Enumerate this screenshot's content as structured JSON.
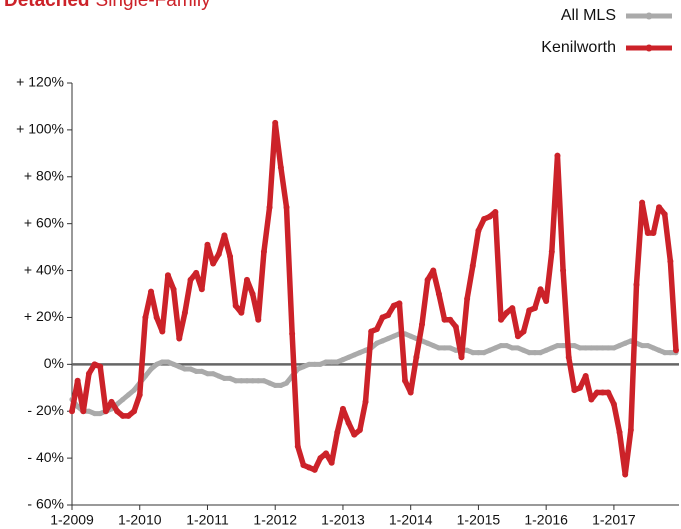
{
  "chart_data": {
    "type": "line",
    "title": "Detached",
    "subtitle": "Single-Family",
    "categories": [
      "1-2009",
      null,
      null,
      null,
      null,
      null,
      null,
      null,
      null,
      null,
      null,
      null,
      "1-2010",
      null,
      null,
      null,
      null,
      null,
      null,
      null,
      null,
      null,
      null,
      null,
      "1-2011",
      null,
      null,
      null,
      null,
      null,
      null,
      null,
      null,
      null,
      null,
      null,
      "1-2012",
      null,
      null,
      null,
      null,
      null,
      null,
      null,
      null,
      null,
      null,
      null,
      "1-2013",
      null,
      null,
      null,
      null,
      null,
      null,
      null,
      null,
      null,
      null,
      null,
      "1-2014",
      null,
      null,
      null,
      null,
      null,
      null,
      null,
      null,
      null,
      null,
      null,
      "1-2015",
      null,
      null,
      null,
      null,
      null,
      null,
      null,
      null,
      null,
      null,
      null,
      "1-2016",
      null,
      null,
      null,
      null,
      null,
      null,
      null,
      null,
      null,
      null,
      null,
      "1-2017",
      null,
      null,
      null,
      null,
      null,
      null,
      null,
      null,
      null,
      null,
      null
    ],
    "series": [
      {
        "name": "All MLS",
        "color": "#aaaaaa",
        "values": [
          -15,
          -18,
          -20,
          -20,
          -21,
          -21,
          -20,
          -19,
          -17,
          -15,
          -13,
          -11,
          -8,
          -5,
          -2,
          0,
          1,
          1,
          0,
          -1,
          -2,
          -2,
          -3,
          -3,
          -4,
          -4,
          -5,
          -6,
          -6,
          -7,
          -7,
          -7,
          -7,
          -7,
          -7,
          -8,
          -9,
          -9,
          -8,
          -5,
          -2,
          -1,
          0,
          0,
          0,
          1,
          1,
          1,
          2,
          3,
          4,
          5,
          6,
          7,
          9,
          10,
          11,
          12,
          13,
          13,
          12,
          11,
          10,
          9,
          8,
          7,
          7,
          7,
          6,
          6,
          6,
          5,
          5,
          5,
          6,
          7,
          8,
          8,
          7,
          7,
          6,
          5,
          5,
          5,
          6,
          7,
          8,
          8,
          8,
          8,
          7,
          7,
          7,
          7,
          7,
          7,
          7,
          8,
          9,
          10,
          9,
          8,
          8,
          7,
          6,
          5,
          5,
          5
        ]
      },
      {
        "name": "Kenilworth",
        "color": "#cc2229",
        "values": [
          -20,
          -7,
          -20,
          -4,
          0,
          -1,
          -20,
          -16,
          -20,
          -22,
          -22,
          -20,
          -13,
          20,
          31,
          20,
          14,
          38,
          32,
          11,
          22,
          36,
          39,
          32,
          51,
          43,
          47,
          55,
          46,
          25,
          22,
          36,
          30,
          19,
          48,
          67,
          103,
          84,
          67,
          13,
          -35,
          -43,
          -44,
          -45,
          -40,
          -38,
          -42,
          -29,
          -19,
          -25,
          -30,
          -28,
          -16,
          14,
          15,
          20,
          21,
          25,
          26,
          -7,
          -12,
          3,
          17,
          36,
          40,
          30,
          19,
          19,
          16,
          3,
          28,
          42,
          57,
          62,
          63,
          65,
          19,
          22,
          24,
          12,
          14,
          23,
          24,
          32,
          27,
          48,
          89,
          40,
          3,
          -11,
          -10,
          -5,
          -15,
          -12,
          -12,
          -12,
          -17,
          -29,
          -47,
          -28,
          34,
          69,
          56,
          56,
          67,
          64,
          44,
          6
        ]
      }
    ],
    "ylim": [
      -60,
      120
    ],
    "yticks": [
      {
        "value": -60,
        "label": "- 60%"
      },
      {
        "value": -40,
        "label": "- 40%"
      },
      {
        "value": -20,
        "label": "- 20%"
      },
      {
        "value": 0,
        "label": "0%"
      },
      {
        "value": 20,
        "label": "+ 20%"
      },
      {
        "value": 40,
        "label": "+ 40%"
      },
      {
        "value": 60,
        "label": "+ 60%"
      },
      {
        "value": 80,
        "label": "+ 80%"
      },
      {
        "value": 100,
        "label": "+ 100%"
      },
      {
        "value": 120,
        "label": "+ 120%"
      }
    ],
    "legend": "top-right",
    "grid": false
  }
}
